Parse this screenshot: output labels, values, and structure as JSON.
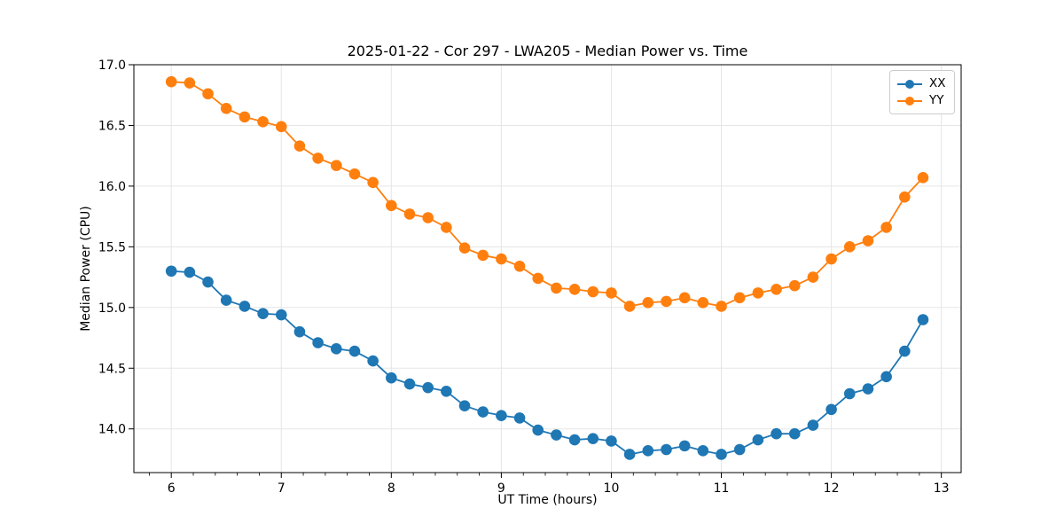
{
  "figure": {
    "title": "2025-01-22 - Cor 297 - LWA205 - Median Power vs. Time"
  },
  "chart_data": {
    "type": "line",
    "title": "2025-01-22 - Cor 297 - LWA205 - Median Power vs. Time",
    "xlabel": "UT Time (hours)",
    "ylabel": "Median Power (CPU)",
    "xlim": [
      5.66,
      13.18
    ],
    "ylim": [
      13.64,
      17.0
    ],
    "grid": true,
    "grid_color": "#e5e5e5",
    "axis_color": "#000000",
    "legend_position": "upper right",
    "x_minor_step": 0.2,
    "xticks": {
      "values": [
        6,
        7,
        8,
        9,
        10,
        11,
        12,
        13
      ],
      "labels": [
        "6",
        "7",
        "8",
        "9",
        "10",
        "11",
        "12",
        "13"
      ]
    },
    "yticks": {
      "values": [
        14.0,
        14.5,
        15.0,
        15.5,
        16.0,
        16.5,
        17.0
      ],
      "labels": [
        "14.0",
        "14.5",
        "15.0",
        "15.5",
        "16.0",
        "16.5",
        "17.0"
      ]
    },
    "x": [
      6.0,
      6.1667,
      6.3333,
      6.5,
      6.6667,
      6.8333,
      7.0,
      7.1667,
      7.3333,
      7.5,
      7.6667,
      7.8333,
      8.0,
      8.1667,
      8.3333,
      8.5,
      8.6667,
      8.8333,
      9.0,
      9.1667,
      9.3333,
      9.5,
      9.6667,
      9.8333,
      10.0,
      10.1667,
      10.3333,
      10.5,
      10.6667,
      10.8333,
      11.0,
      11.1667,
      11.3333,
      11.5,
      11.6667,
      11.8333,
      12.0,
      12.1667,
      12.3333,
      12.5,
      12.6667,
      12.8333
    ],
    "series": [
      {
        "name": "XX",
        "color": "#1f77b4",
        "values": [
          15.3,
          15.29,
          15.21,
          15.06,
          15.01,
          14.95,
          14.94,
          14.8,
          14.71,
          14.66,
          14.64,
          14.56,
          14.42,
          14.37,
          14.34,
          14.31,
          14.19,
          14.14,
          14.11,
          14.09,
          13.99,
          13.95,
          13.91,
          13.92,
          13.9,
          13.79,
          13.82,
          13.83,
          13.86,
          13.82,
          13.79,
          13.83,
          13.91,
          13.96,
          13.96,
          14.03,
          14.16,
          14.29,
          14.33,
          14.43,
          14.64,
          14.9
        ]
      },
      {
        "name": "YY",
        "color": "#ff7f0e",
        "values": [
          16.86,
          16.85,
          16.76,
          16.64,
          16.57,
          16.53,
          16.49,
          16.33,
          16.23,
          16.17,
          16.1,
          16.03,
          15.84,
          15.77,
          15.74,
          15.66,
          15.49,
          15.43,
          15.4,
          15.34,
          15.24,
          15.16,
          15.15,
          15.13,
          15.12,
          15.01,
          15.04,
          15.05,
          15.08,
          15.04,
          15.01,
          15.08,
          15.12,
          15.15,
          15.18,
          15.25,
          15.4,
          15.5,
          15.55,
          15.66,
          15.91,
          16.07
        ]
      }
    ]
  }
}
